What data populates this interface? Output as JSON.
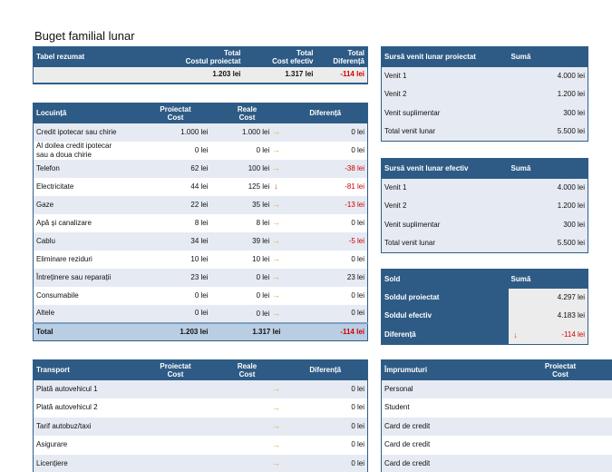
{
  "title": "Buget familial lunar",
  "summary": {
    "header": [
      "Tabel rezumat",
      "Total\nCostul proiectat",
      "Total\nCost efectiv",
      "Total\nDiferență"
    ],
    "row": [
      "",
      "1.203 lei",
      "1.317 lei",
      "-114 lei"
    ]
  },
  "income_projected": {
    "header": [
      "Sursă venit lunar proiectat",
      "Sumă"
    ],
    "rows": [
      [
        "Venit 1",
        "4.000 lei"
      ],
      [
        "Venit 2",
        "1.200 lei"
      ],
      [
        "Venit suplimentar",
        "300 lei"
      ],
      [
        "Total venit lunar",
        "5.500 lei"
      ]
    ]
  },
  "income_actual": {
    "header": [
      "Sursă venit lunar efectiv",
      "Sumă"
    ],
    "rows": [
      [
        "Venit 1",
        "4.000 lei"
      ],
      [
        "Venit 2",
        "1.200 lei"
      ],
      [
        "Venit suplimentar",
        "300 lei"
      ],
      [
        "Total venit lunar",
        "5.500 lei"
      ]
    ]
  },
  "balance": {
    "header": [
      "Sold",
      "Sumă"
    ],
    "rows": [
      [
        "Soldul proiectat",
        "4.297 lei"
      ],
      [
        "Soldul efectiv",
        "4.183 lei"
      ],
      [
        "Diferență",
        "-114 lei"
      ]
    ]
  },
  "housing": {
    "header": [
      "Locuință",
      "Proiectat\nCost",
      "Reale\nCost",
      "Diferență"
    ],
    "rows": [
      {
        "name": "Credit ipotecar sau chirie",
        "proj": "1.000 lei",
        "real": "1.000 lei",
        "arrow": "side",
        "diff": "0 lei",
        "neg": false
      },
      {
        "name": "Al doilea credit ipotecar\nsau a doua chirie",
        "proj": "0 lei",
        "real": "0 lei",
        "arrow": "side",
        "diff": "0 lei",
        "neg": false
      },
      {
        "name": "Telefon",
        "proj": "62 lei",
        "real": "100 lei",
        "arrow": "side",
        "diff": "-38 lei",
        "neg": true
      },
      {
        "name": "Electricitate",
        "proj": "44 lei",
        "real": "125 lei",
        "arrow": "down",
        "diff": "-81 lei",
        "neg": true
      },
      {
        "name": "Gaze",
        "proj": "22 lei",
        "real": "35 lei",
        "arrow": "side",
        "diff": "-13 lei",
        "neg": true
      },
      {
        "name": "Apă și canalizare",
        "proj": "8 lei",
        "real": "8 lei",
        "arrow": "side",
        "diff": "0 lei",
        "neg": false
      },
      {
        "name": "Cablu",
        "proj": "34 lei",
        "real": "39 lei",
        "arrow": "side",
        "diff": "-5 lei",
        "neg": true
      },
      {
        "name": "Eliminare reziduri",
        "proj": "10 lei",
        "real": "10 lei",
        "arrow": "side",
        "diff": "0 lei",
        "neg": false
      },
      {
        "name": "Întreținere sau reparații",
        "proj": "23 lei",
        "real": "0 lei",
        "arrow": "side",
        "diff": "23 lei",
        "neg": false
      },
      {
        "name": "Consumabile",
        "proj": "0 lei",
        "real": "0 lei",
        "arrow": "side",
        "diff": "0 lei",
        "neg": false
      },
      {
        "name": "Altele",
        "proj": "0 lei",
        "real": "0 lei",
        "arrow": "side",
        "diff": "0 lei",
        "neg": false
      }
    ],
    "total": {
      "name": "Total",
      "proj": "1.203 lei",
      "real": "1.317 lei",
      "diff": "-114 lei"
    }
  },
  "transport": {
    "header": [
      "Transport",
      "Proiectat\nCost",
      "Reale\nCost",
      "Diferență"
    ],
    "rows": [
      {
        "name": "Plată autovehicul 1",
        "proj": "",
        "real": "",
        "arrow": "side",
        "diff": "0 lei",
        "neg": false
      },
      {
        "name": "Plată autovehicul 2",
        "proj": "",
        "real": "",
        "arrow": "side",
        "diff": "0 lei",
        "neg": false
      },
      {
        "name": "Tarif autobuz/taxi",
        "proj": "",
        "real": "",
        "arrow": "side",
        "diff": "0 lei",
        "neg": false
      },
      {
        "name": "Asigurare",
        "proj": "",
        "real": "",
        "arrow": "side",
        "diff": "0 lei",
        "neg": false
      },
      {
        "name": "Licențiere",
        "proj": "",
        "real": "",
        "arrow": "side",
        "diff": "0 lei",
        "neg": false
      }
    ]
  },
  "loans": {
    "header": [
      "Împrumuturi",
      "Proiectat\nCost"
    ],
    "rows": [
      "Personal",
      "Student",
      "Card de credit",
      "Card de credit",
      "Card de credit"
    ]
  },
  "icons": {
    "side": "→",
    "down": "↓"
  },
  "colors": {
    "header": "#2e5b85",
    "alt_row": "#e6eaf2",
    "negative": "#d00000",
    "total_row": "#b9cde3"
  }
}
